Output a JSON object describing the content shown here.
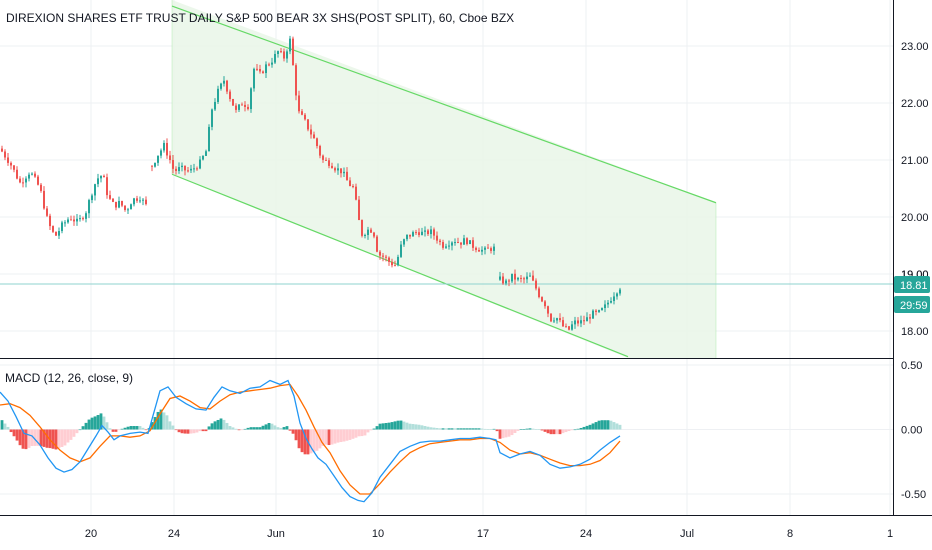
{
  "header": {
    "title": "DIREXION SHARES ETF TRUST DAILY S&P 500 BEAR 3X SHS(POST SPLIT), 60, Cboe BZX"
  },
  "price_pane": {
    "last_price_label": "18.81",
    "countdown_label": "29:59"
  },
  "macd_pane": {
    "label": "MACD (12, 26, close, 9)"
  },
  "colors": {
    "up": "#26a69a",
    "down": "#ef5350",
    "channel_line": "#66d966",
    "channel_fill": "#e9f6e7",
    "last_price_line": "#8fd3cf",
    "badge": "#26a69a",
    "macd_line": "#2196f3",
    "signal_line": "#ff6d00",
    "grid": "#eef0f3",
    "border": "#131722"
  },
  "chart_data": [
    {
      "type": "line",
      "subtype": "candlestick",
      "title": "DIREXION SHARES ETF TRUST DAILY S&P 500 BEAR 3X SHS(POST SPLIT), 60, Cboe BZX",
      "x_ticks": [
        "20",
        "24",
        "Jun",
        "10",
        "17",
        "24",
        "Jul",
        "8",
        "1"
      ],
      "y_ticks": [
        "18.00",
        "19.00",
        "20.00",
        "21.00",
        "22.00",
        "23.00"
      ],
      "ylim": [
        17.6,
        23.5
      ],
      "last_price": 18.81,
      "grid": true,
      "series": [
        {
          "name": "DIREXION SHARES ETF TRUST DAILY S&P 500 BEAR 3X SHS(POST SPLIT), 60, Cboe BZX",
          "anchors": [
            [
              0,
              21.2
            ],
            [
              10,
              20.95
            ],
            [
              20,
              20.6
            ],
            [
              30,
              20.8
            ],
            [
              40,
              20.5
            ],
            [
              48,
              19.9
            ],
            [
              55,
              19.65
            ],
            [
              62,
              19.85
            ],
            [
              70,
              20.0
            ],
            [
              78,
              19.9
            ],
            [
              86,
              20.1
            ],
            [
              94,
              20.55
            ],
            [
              100,
              20.75
            ],
            [
              104,
              20.65
            ],
            [
              108,
              20.35
            ],
            [
              114,
              20.2
            ],
            [
              120,
              20.25
            ],
            [
              126,
              20.1
            ],
            [
              132,
              20.3
            ],
            [
              140,
              20.35
            ],
            [
              146,
              20.2
            ],
            [
              150,
              20.1
            ],
            [
              152,
              20.9
            ],
            [
              158,
              21.1
            ],
            [
              164,
              21.25
            ],
            [
              170,
              21.0
            ],
            [
              174,
              20.8
            ],
            [
              180,
              20.85
            ],
            [
              190,
              20.8
            ],
            [
              200,
              20.95
            ],
            [
              206,
              21.15
            ],
            [
              212,
              21.9
            ],
            [
              218,
              22.2
            ],
            [
              224,
              22.4
            ],
            [
              230,
              22.1
            ],
            [
              236,
              21.85
            ],
            [
              242,
              22.0
            ],
            [
              248,
              21.95
            ],
            [
              254,
              22.6
            ],
            [
              260,
              22.5
            ],
            [
              266,
              22.65
            ],
            [
              272,
              22.75
            ],
            [
              278,
              22.9
            ],
            [
              284,
              22.8
            ],
            [
              290,
              23.1
            ],
            [
              294,
              22.5
            ],
            [
              298,
              21.85
            ],
            [
              304,
              21.7
            ],
            [
              310,
              21.5
            ],
            [
              316,
              21.3
            ],
            [
              322,
              21.0
            ],
            [
              330,
              20.95
            ],
            [
              336,
              20.85
            ],
            [
              342,
              20.8
            ],
            [
              348,
              20.6
            ],
            [
              354,
              20.5
            ],
            [
              358,
              20.0
            ],
            [
              362,
              19.7
            ],
            [
              366,
              19.75
            ],
            [
              370,
              19.8
            ],
            [
              374,
              19.7
            ],
            [
              378,
              19.35
            ],
            [
              384,
              19.3
            ],
            [
              390,
              19.2
            ],
            [
              396,
              19.15
            ],
            [
              400,
              19.45
            ],
            [
              406,
              19.65
            ],
            [
              412,
              19.7
            ],
            [
              418,
              19.75
            ],
            [
              424,
              19.7
            ],
            [
              430,
              19.75
            ],
            [
              436,
              19.65
            ],
            [
              442,
              19.5
            ],
            [
              448,
              19.55
            ],
            [
              454,
              19.6
            ],
            [
              460,
              19.55
            ],
            [
              466,
              19.6
            ],
            [
              472,
              19.5
            ],
            [
              478,
              19.45
            ],
            [
              484,
              19.4
            ],
            [
              490,
              19.45
            ],
            [
              496,
              19.45
            ],
            [
              500,
              18.9
            ],
            [
              506,
              18.85
            ],
            [
              512,
              18.95
            ],
            [
              518,
              18.9
            ],
            [
              524,
              18.9
            ],
            [
              530,
              18.95
            ],
            [
              536,
              18.75
            ],
            [
              540,
              18.6
            ],
            [
              546,
              18.45
            ],
            [
              550,
              18.2
            ],
            [
              556,
              18.25
            ],
            [
              562,
              18.1
            ],
            [
              568,
              18.0
            ],
            [
              574,
              18.15
            ],
            [
              580,
              18.15
            ],
            [
              586,
              18.2
            ],
            [
              592,
              18.3
            ],
            [
              598,
              18.3
            ],
            [
              604,
              18.4
            ],
            [
              610,
              18.55
            ],
            [
              616,
              18.7
            ],
            [
              622,
              18.81
            ]
          ],
          "gaps": [
            [
              146,
              152
            ],
            [
              496,
              500
            ]
          ]
        },
        {
          "name": "channel",
          "lower": [
            [
              172,
              20.75
            ],
            [
              628,
              17.55
            ]
          ],
          "upper": [
            [
              172,
              23.7
            ],
            [
              716,
              20.25
            ]
          ]
        }
      ]
    },
    {
      "type": "line",
      "title": "MACD (12, 26, close, 9)",
      "y_ticks": [
        "0.50",
        "0.00",
        "-0.50"
      ],
      "ylim": [
        -0.62,
        0.56
      ],
      "grid": true,
      "series": [
        {
          "name": "MACD",
          "points": [
            [
              0,
              0.29
            ],
            [
              8,
              0.22
            ],
            [
              16,
              0.1
            ],
            [
              24,
              -0.03
            ],
            [
              32,
              -0.05
            ],
            [
              40,
              -0.12
            ],
            [
              48,
              -0.22
            ],
            [
              56,
              -0.3
            ],
            [
              64,
              -0.33
            ],
            [
              72,
              -0.31
            ],
            [
              80,
              -0.25
            ],
            [
              88,
              -0.15
            ],
            [
              96,
              -0.05
            ],
            [
              102,
              0.03
            ],
            [
              108,
              -0.02
            ],
            [
              114,
              -0.08
            ],
            [
              120,
              -0.05
            ],
            [
              130,
              -0.03
            ],
            [
              140,
              -0.02
            ],
            [
              148,
              -0.03
            ],
            [
              152,
              0.08
            ],
            [
              160,
              0.3
            ],
            [
              168,
              0.33
            ],
            [
              176,
              0.25
            ],
            [
              186,
              0.2
            ],
            [
              196,
              0.16
            ],
            [
              206,
              0.15
            ],
            [
              214,
              0.25
            ],
            [
              222,
              0.33
            ],
            [
              230,
              0.3
            ],
            [
              240,
              0.28
            ],
            [
              250,
              0.32
            ],
            [
              260,
              0.33
            ],
            [
              270,
              0.38
            ],
            [
              280,
              0.35
            ],
            [
              288,
              0.38
            ],
            [
              294,
              0.26
            ],
            [
              300,
              0.05
            ],
            [
              306,
              -0.07
            ],
            [
              312,
              -0.15
            ],
            [
              318,
              -0.22
            ],
            [
              326,
              -0.27
            ],
            [
              334,
              -0.36
            ],
            [
              342,
              -0.45
            ],
            [
              350,
              -0.52
            ],
            [
              358,
              -0.55
            ],
            [
              364,
              -0.56
            ],
            [
              372,
              -0.49
            ],
            [
              380,
              -0.37
            ],
            [
              390,
              -0.27
            ],
            [
              400,
              -0.17
            ],
            [
              410,
              -0.13
            ],
            [
              420,
              -0.1
            ],
            [
              430,
              -0.09
            ],
            [
              440,
              -0.09
            ],
            [
              450,
              -0.08
            ],
            [
              460,
              -0.07
            ],
            [
              470,
              -0.07
            ],
            [
              480,
              -0.06
            ],
            [
              490,
              -0.07
            ],
            [
              496,
              -0.08
            ],
            [
              500,
              -0.18
            ],
            [
              510,
              -0.22
            ],
            [
              520,
              -0.19
            ],
            [
              530,
              -0.17
            ],
            [
              540,
              -0.2
            ],
            [
              550,
              -0.27
            ],
            [
              560,
              -0.3
            ],
            [
              570,
              -0.29
            ],
            [
              580,
              -0.27
            ],
            [
              590,
              -0.23
            ],
            [
              600,
              -0.16
            ],
            [
              610,
              -0.1
            ],
            [
              620,
              -0.05
            ]
          ]
        },
        {
          "name": "Signal",
          "points": [
            [
              0,
              0.19
            ],
            [
              10,
              0.2
            ],
            [
              20,
              0.17
            ],
            [
              30,
              0.11
            ],
            [
              40,
              0.02
            ],
            [
              50,
              -0.08
            ],
            [
              60,
              -0.16
            ],
            [
              70,
              -0.22
            ],
            [
              80,
              -0.25
            ],
            [
              90,
              -0.22
            ],
            [
              100,
              -0.13
            ],
            [
              110,
              -0.05
            ],
            [
              120,
              -0.05
            ],
            [
              130,
              -0.06
            ],
            [
              140,
              -0.05
            ],
            [
              150,
              -0.01
            ],
            [
              160,
              0.12
            ],
            [
              170,
              0.24
            ],
            [
              180,
              0.26
            ],
            [
              190,
              0.22
            ],
            [
              200,
              0.17
            ],
            [
              210,
              0.16
            ],
            [
              220,
              0.22
            ],
            [
              230,
              0.27
            ],
            [
              240,
              0.29
            ],
            [
              250,
              0.3
            ],
            [
              260,
              0.31
            ],
            [
              270,
              0.32
            ],
            [
              280,
              0.34
            ],
            [
              290,
              0.35
            ],
            [
              298,
              0.26
            ],
            [
              306,
              0.15
            ],
            [
              314,
              0.02
            ],
            [
              322,
              -0.1
            ],
            [
              330,
              -0.18
            ],
            [
              340,
              -0.32
            ],
            [
              350,
              -0.43
            ],
            [
              360,
              -0.5
            ],
            [
              370,
              -0.5
            ],
            [
              380,
              -0.42
            ],
            [
              390,
              -0.33
            ],
            [
              400,
              -0.25
            ],
            [
              410,
              -0.18
            ],
            [
              420,
              -0.14
            ],
            [
              430,
              -0.11
            ],
            [
              440,
              -0.1
            ],
            [
              450,
              -0.09
            ],
            [
              460,
              -0.08
            ],
            [
              470,
              -0.08
            ],
            [
              480,
              -0.07
            ],
            [
              490,
              -0.07
            ],
            [
              500,
              -0.1
            ],
            [
              510,
              -0.16
            ],
            [
              520,
              -0.19
            ],
            [
              530,
              -0.18
            ],
            [
              540,
              -0.2
            ],
            [
              550,
              -0.23
            ],
            [
              560,
              -0.26
            ],
            [
              570,
              -0.28
            ],
            [
              580,
              -0.28
            ],
            [
              590,
              -0.27
            ],
            [
              600,
              -0.24
            ],
            [
              610,
              -0.18
            ],
            [
              620,
              -0.09
            ]
          ]
        }
      ]
    }
  ]
}
